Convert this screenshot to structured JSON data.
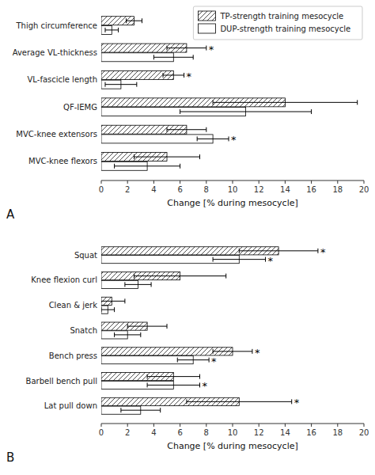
{
  "chart_data": [
    {
      "type": "bar",
      "orientation": "horizontal",
      "title": "A",
      "categories": [
        "Thigh circumference",
        "Average VL-thickness",
        "VL-fascicle length",
        "QF-IEMG",
        "MVC-knee extensors",
        "MVC-knee flexors"
      ],
      "series": [
        {
          "name": "TP-strength training mesocycle",
          "color": "#ffffff",
          "values": [
            2.5,
            6.5,
            5.5,
            14.0,
            6.5,
            5.0
          ],
          "errors": [
            0.6,
            1.5,
            0.8,
            5.5,
            1.5,
            2.5
          ]
        },
        {
          "name": "DUP-strength training mesocycle",
          "color": "#ffffff",
          "values": [
            0.8,
            5.5,
            1.5,
            11.0,
            8.5,
            3.5
          ],
          "errors": [
            0.5,
            1.5,
            1.2,
            5.0,
            1.2,
            2.5
          ]
        }
      ],
      "annotations": [
        {
          "text": "*",
          "series": 0,
          "category": "Average VL-thickness"
        },
        {
          "text": "*",
          "series": 0,
          "category": "VL-fascicle length"
        },
        {
          "text": "*",
          "series": 1,
          "category": "MVC-knee extensors"
        }
      ],
      "xlabel": "Change [% during mesocycle]",
      "xlim": [
        0,
        20
      ],
      "xticks": [
        0,
        2,
        4,
        6,
        8,
        10,
        12,
        14,
        16,
        18,
        20
      ],
      "legend": "upper right"
    },
    {
      "type": "bar",
      "orientation": "horizontal",
      "title": "B",
      "categories": [
        "Squat",
        "Knee flexion curl",
        "Clean & jerk",
        "Snatch",
        "Bench press",
        "Barbell bench pull",
        "Lat pull down"
      ],
      "series": [
        {
          "color": "#ffffff",
          "values": [
            13.5,
            6.0,
            0.8,
            3.5,
            10.0,
            5.5,
            10.5
          ],
          "errors": [
            3.0,
            3.5,
            1.0,
            1.5,
            1.5,
            2.0,
            4.0
          ]
        },
        {
          "color": "#ffffff",
          "values": [
            10.5,
            2.8,
            0.5,
            2.0,
            7.0,
            5.5,
            3.0
          ],
          "errors": [
            2.0,
            1.0,
            0.5,
            1.0,
            1.2,
            2.0,
            1.5
          ]
        }
      ],
      "annotations": [
        {
          "text": "*",
          "series": 0,
          "category": "Squat"
        },
        {
          "text": "*",
          "series": 0,
          "category": "Bench press"
        },
        {
          "text": "*",
          "series": 0,
          "category": "Lat pull down"
        },
        {
          "text": "*",
          "series": 1,
          "category": "Squat"
        },
        {
          "text": "*",
          "series": 1,
          "category": "Bench press"
        },
        {
          "text": "*",
          "series": 1,
          "category": "Barbell bench pull"
        }
      ],
      "xlabel": "Change [% during mesocycle]",
      "xlim": [
        0,
        20
      ],
      "xticks": [
        0,
        2,
        4,
        6,
        8,
        10,
        12,
        14,
        16,
        18,
        20
      ]
    }
  ]
}
